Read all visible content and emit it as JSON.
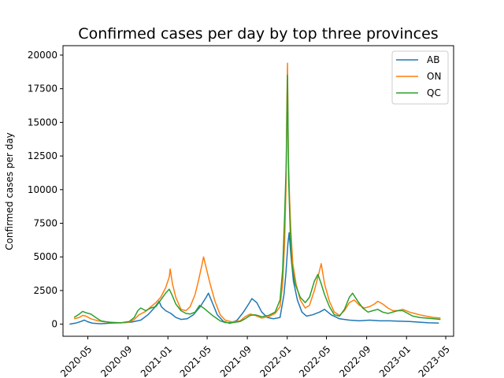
{
  "chart_data": {
    "type": "line",
    "title": "Confirmed cases per day by top three provinces",
    "xlabel": "",
    "ylabel": "Confirmed cases per day",
    "ylim": [
      -900,
      20700
    ],
    "xlim": [
      "2020-02-15",
      "2023-05-25"
    ],
    "x_ticks": [
      "2020-05",
      "2020-09",
      "2021-01",
      "2021-05",
      "2021-09",
      "2022-01",
      "2022-05",
      "2022-09",
      "2023-01",
      "2023-05"
    ],
    "y_ticks": [
      0,
      2500,
      5000,
      7500,
      10000,
      12500,
      15000,
      17500,
      20000
    ],
    "y_tick_labels": [
      "0",
      "2500",
      "5000",
      "7500",
      "10000",
      "12500",
      "15000",
      "17500",
      "20000"
    ],
    "grid": false,
    "legend_position": "top-right",
    "series": [
      {
        "name": "AB",
        "color": "#1f77b4",
        "points": [
          [
            "2020-03-06",
            0
          ],
          [
            "2020-03-25",
            80
          ],
          [
            "2020-04-10",
            200
          ],
          [
            "2020-04-20",
            300
          ],
          [
            "2020-05-01",
            180
          ],
          [
            "2020-05-15",
            70
          ],
          [
            "2020-06-10",
            30
          ],
          [
            "2020-07-10",
            80
          ],
          [
            "2020-08-10",
            100
          ],
          [
            "2020-09-10",
            150
          ],
          [
            "2020-10-10",
            300
          ],
          [
            "2020-11-01",
            700
          ],
          [
            "2020-11-20",
            1200
          ],
          [
            "2020-12-05",
            1700
          ],
          [
            "2020-12-12",
            1300
          ],
          [
            "2020-12-25",
            1000
          ],
          [
            "2021-01-10",
            800
          ],
          [
            "2021-01-25",
            500
          ],
          [
            "2021-02-10",
            350
          ],
          [
            "2021-03-01",
            400
          ],
          [
            "2021-03-20",
            700
          ],
          [
            "2021-04-10",
            1300
          ],
          [
            "2021-04-28",
            2000
          ],
          [
            "2021-05-05",
            2300
          ],
          [
            "2021-05-15",
            1700
          ],
          [
            "2021-06-01",
            700
          ],
          [
            "2021-06-20",
            200
          ],
          [
            "2021-07-10",
            60
          ],
          [
            "2021-08-01",
            300
          ],
          [
            "2021-08-20",
            900
          ],
          [
            "2021-09-05",
            1500
          ],
          [
            "2021-09-15",
            1900
          ],
          [
            "2021-09-30",
            1600
          ],
          [
            "2021-10-15",
            900
          ],
          [
            "2021-11-01",
            500
          ],
          [
            "2021-11-20",
            400
          ],
          [
            "2021-12-10",
            500
          ],
          [
            "2021-12-22",
            2200
          ],
          [
            "2021-12-28",
            3800
          ],
          [
            "2022-01-03",
            6000
          ],
          [
            "2022-01-07",
            6800
          ],
          [
            "2022-01-12",
            5200
          ],
          [
            "2022-01-20",
            3200
          ],
          [
            "2022-02-01",
            1800
          ],
          [
            "2022-02-15",
            900
          ],
          [
            "2022-03-01",
            600
          ],
          [
            "2022-03-20",
            700
          ],
          [
            "2022-04-10",
            900
          ],
          [
            "2022-04-25",
            1100
          ],
          [
            "2022-05-15",
            700
          ],
          [
            "2022-06-10",
            400
          ],
          [
            "2022-07-10",
            300
          ],
          [
            "2022-08-10",
            250
          ],
          [
            "2022-09-10",
            300
          ],
          [
            "2022-10-10",
            250
          ],
          [
            "2022-11-10",
            250
          ],
          [
            "2022-12-10",
            220
          ],
          [
            "2023-01-10",
            200
          ],
          [
            "2023-02-10",
            150
          ],
          [
            "2023-03-10",
            100
          ],
          [
            "2023-04-10",
            80
          ]
        ]
      },
      {
        "name": "ON",
        "color": "#ff7f0e",
        "points": [
          [
            "2020-03-20",
            400
          ],
          [
            "2020-04-05",
            500
          ],
          [
            "2020-04-15",
            650
          ],
          [
            "2020-04-25",
            600
          ],
          [
            "2020-05-10",
            400
          ],
          [
            "2020-06-01",
            250
          ],
          [
            "2020-06-20",
            180
          ],
          [
            "2020-07-10",
            150
          ],
          [
            "2020-08-10",
            100
          ],
          [
            "2020-09-05",
            150
          ],
          [
            "2020-09-20",
            350
          ],
          [
            "2020-10-05",
            700
          ],
          [
            "2020-10-25",
            950
          ],
          [
            "2020-11-10",
            1300
          ],
          [
            "2020-11-25",
            1600
          ],
          [
            "2020-12-10",
            2000
          ],
          [
            "2020-12-25",
            2700
          ],
          [
            "2021-01-05",
            3500
          ],
          [
            "2021-01-08",
            4100
          ],
          [
            "2021-01-15",
            3000
          ],
          [
            "2021-01-25",
            2000
          ],
          [
            "2021-02-10",
            1100
          ],
          [
            "2021-02-25",
            1000
          ],
          [
            "2021-03-10",
            1300
          ],
          [
            "2021-03-25",
            2200
          ],
          [
            "2021-04-05",
            3300
          ],
          [
            "2021-04-15",
            4400
          ],
          [
            "2021-04-20",
            5000
          ],
          [
            "2021-04-28",
            4200
          ],
          [
            "2021-05-10",
            3000
          ],
          [
            "2021-05-25",
            1700
          ],
          [
            "2021-06-10",
            700
          ],
          [
            "2021-06-25",
            300
          ],
          [
            "2021-07-15",
            170
          ],
          [
            "2021-08-10",
            250
          ],
          [
            "2021-08-25",
            550
          ],
          [
            "2021-09-10",
            750
          ],
          [
            "2021-09-25",
            650
          ],
          [
            "2021-10-15",
            450
          ],
          [
            "2021-11-05",
            550
          ],
          [
            "2021-11-25",
            800
          ],
          [
            "2021-12-10",
            1300
          ],
          [
            "2021-12-18",
            3000
          ],
          [
            "2021-12-24",
            6000
          ],
          [
            "2021-12-28",
            10000
          ],
          [
            "2021-12-31",
            16500
          ],
          [
            "2022-01-02",
            19400
          ],
          [
            "2022-01-04",
            13000
          ],
          [
            "2022-01-08",
            9500
          ],
          [
            "2022-01-12",
            7000
          ],
          [
            "2022-01-18",
            4500
          ],
          [
            "2022-01-28",
            3000
          ],
          [
            "2022-02-10",
            1800
          ],
          [
            "2022-02-25",
            1200
          ],
          [
            "2022-03-10",
            1400
          ],
          [
            "2022-03-25",
            2500
          ],
          [
            "2022-04-08",
            3800
          ],
          [
            "2022-04-15",
            4500
          ],
          [
            "2022-04-25",
            3000
          ],
          [
            "2022-05-10",
            1700
          ],
          [
            "2022-05-25",
            900
          ],
          [
            "2022-06-10",
            650
          ],
          [
            "2022-06-25",
            1000
          ],
          [
            "2022-07-10",
            1600
          ],
          [
            "2022-07-25",
            1800
          ],
          [
            "2022-08-10",
            1400
          ],
          [
            "2022-08-25",
            1200
          ],
          [
            "2022-09-10",
            1300
          ],
          [
            "2022-09-25",
            1500
          ],
          [
            "2022-10-05",
            1700
          ],
          [
            "2022-10-20",
            1500
          ],
          [
            "2022-11-05",
            1200
          ],
          [
            "2022-11-20",
            1000
          ],
          [
            "2022-12-05",
            1000
          ],
          [
            "2022-12-20",
            1100
          ],
          [
            "2023-01-10",
            900
          ],
          [
            "2023-01-25",
            800
          ],
          [
            "2023-02-10",
            700
          ],
          [
            "2023-03-01",
            600
          ],
          [
            "2023-03-25",
            500
          ],
          [
            "2023-04-15",
            450
          ]
        ]
      },
      {
        "name": "QC",
        "color": "#2ca02c",
        "points": [
          [
            "2020-03-20",
            500
          ],
          [
            "2020-04-05",
            750
          ],
          [
            "2020-04-15",
            950
          ],
          [
            "2020-04-25",
            850
          ],
          [
            "2020-05-10",
            750
          ],
          [
            "2020-05-25",
            500
          ],
          [
            "2020-06-10",
            250
          ],
          [
            "2020-07-10",
            120
          ],
          [
            "2020-08-10",
            100
          ],
          [
            "2020-09-05",
            200
          ],
          [
            "2020-09-20",
            500
          ],
          [
            "2020-10-01",
            1000
          ],
          [
            "2020-10-10",
            1200
          ],
          [
            "2020-10-25",
            1000
          ],
          [
            "2020-11-10",
            1200
          ],
          [
            "2020-11-25",
            1300
          ],
          [
            "2020-12-10",
            1800
          ],
          [
            "2020-12-25",
            2300
          ],
          [
            "2021-01-05",
            2600
          ],
          [
            "2021-01-15",
            2100
          ],
          [
            "2021-01-25",
            1500
          ],
          [
            "2021-02-10",
            1000
          ],
          [
            "2021-02-25",
            800
          ],
          [
            "2021-03-10",
            750
          ],
          [
            "2021-03-25",
            900
          ],
          [
            "2021-04-08",
            1400
          ],
          [
            "2021-04-20",
            1200
          ],
          [
            "2021-05-05",
            900
          ],
          [
            "2021-05-20",
            600
          ],
          [
            "2021-06-10",
            250
          ],
          [
            "2021-06-25",
            120
          ],
          [
            "2021-07-15",
            100
          ],
          [
            "2021-08-10",
            200
          ],
          [
            "2021-08-25",
            400
          ],
          [
            "2021-09-10",
            650
          ],
          [
            "2021-09-25",
            700
          ],
          [
            "2021-10-15",
            550
          ],
          [
            "2021-11-05",
            650
          ],
          [
            "2021-11-25",
            900
          ],
          [
            "2021-12-10",
            1800
          ],
          [
            "2021-12-18",
            4000
          ],
          [
            "2021-12-24",
            8000
          ],
          [
            "2021-12-29",
            12000
          ],
          [
            "2022-01-01",
            17000
          ],
          [
            "2022-01-02",
            18500
          ],
          [
            "2022-01-05",
            11000
          ],
          [
            "2022-01-10",
            7000
          ],
          [
            "2022-01-15",
            4500
          ],
          [
            "2022-01-25",
            3000
          ],
          [
            "2022-02-10",
            2000
          ],
          [
            "2022-02-25",
            1600
          ],
          [
            "2022-03-10",
            2000
          ],
          [
            "2022-03-25",
            3200
          ],
          [
            "2022-04-05",
            3700
          ],
          [
            "2022-04-15",
            3000
          ],
          [
            "2022-04-25",
            2200
          ],
          [
            "2022-05-10",
            1300
          ],
          [
            "2022-05-25",
            700
          ],
          [
            "2022-06-10",
            600
          ],
          [
            "2022-06-25",
            1100
          ],
          [
            "2022-07-10",
            2000
          ],
          [
            "2022-07-20",
            2300
          ],
          [
            "2022-08-05",
            1700
          ],
          [
            "2022-08-20",
            1200
          ],
          [
            "2022-09-05",
            900
          ],
          [
            "2022-09-20",
            1000
          ],
          [
            "2022-10-05",
            1100
          ],
          [
            "2022-10-20",
            900
          ],
          [
            "2022-11-05",
            800
          ],
          [
            "2022-11-20",
            900
          ],
          [
            "2022-12-05",
            1000
          ],
          [
            "2022-12-20",
            1000
          ],
          [
            "2023-01-05",
            800
          ],
          [
            "2023-01-20",
            600
          ],
          [
            "2023-02-10",
            500
          ],
          [
            "2023-03-01",
            450
          ],
          [
            "2023-03-25",
            400
          ],
          [
            "2023-04-15",
            350
          ]
        ]
      }
    ]
  }
}
